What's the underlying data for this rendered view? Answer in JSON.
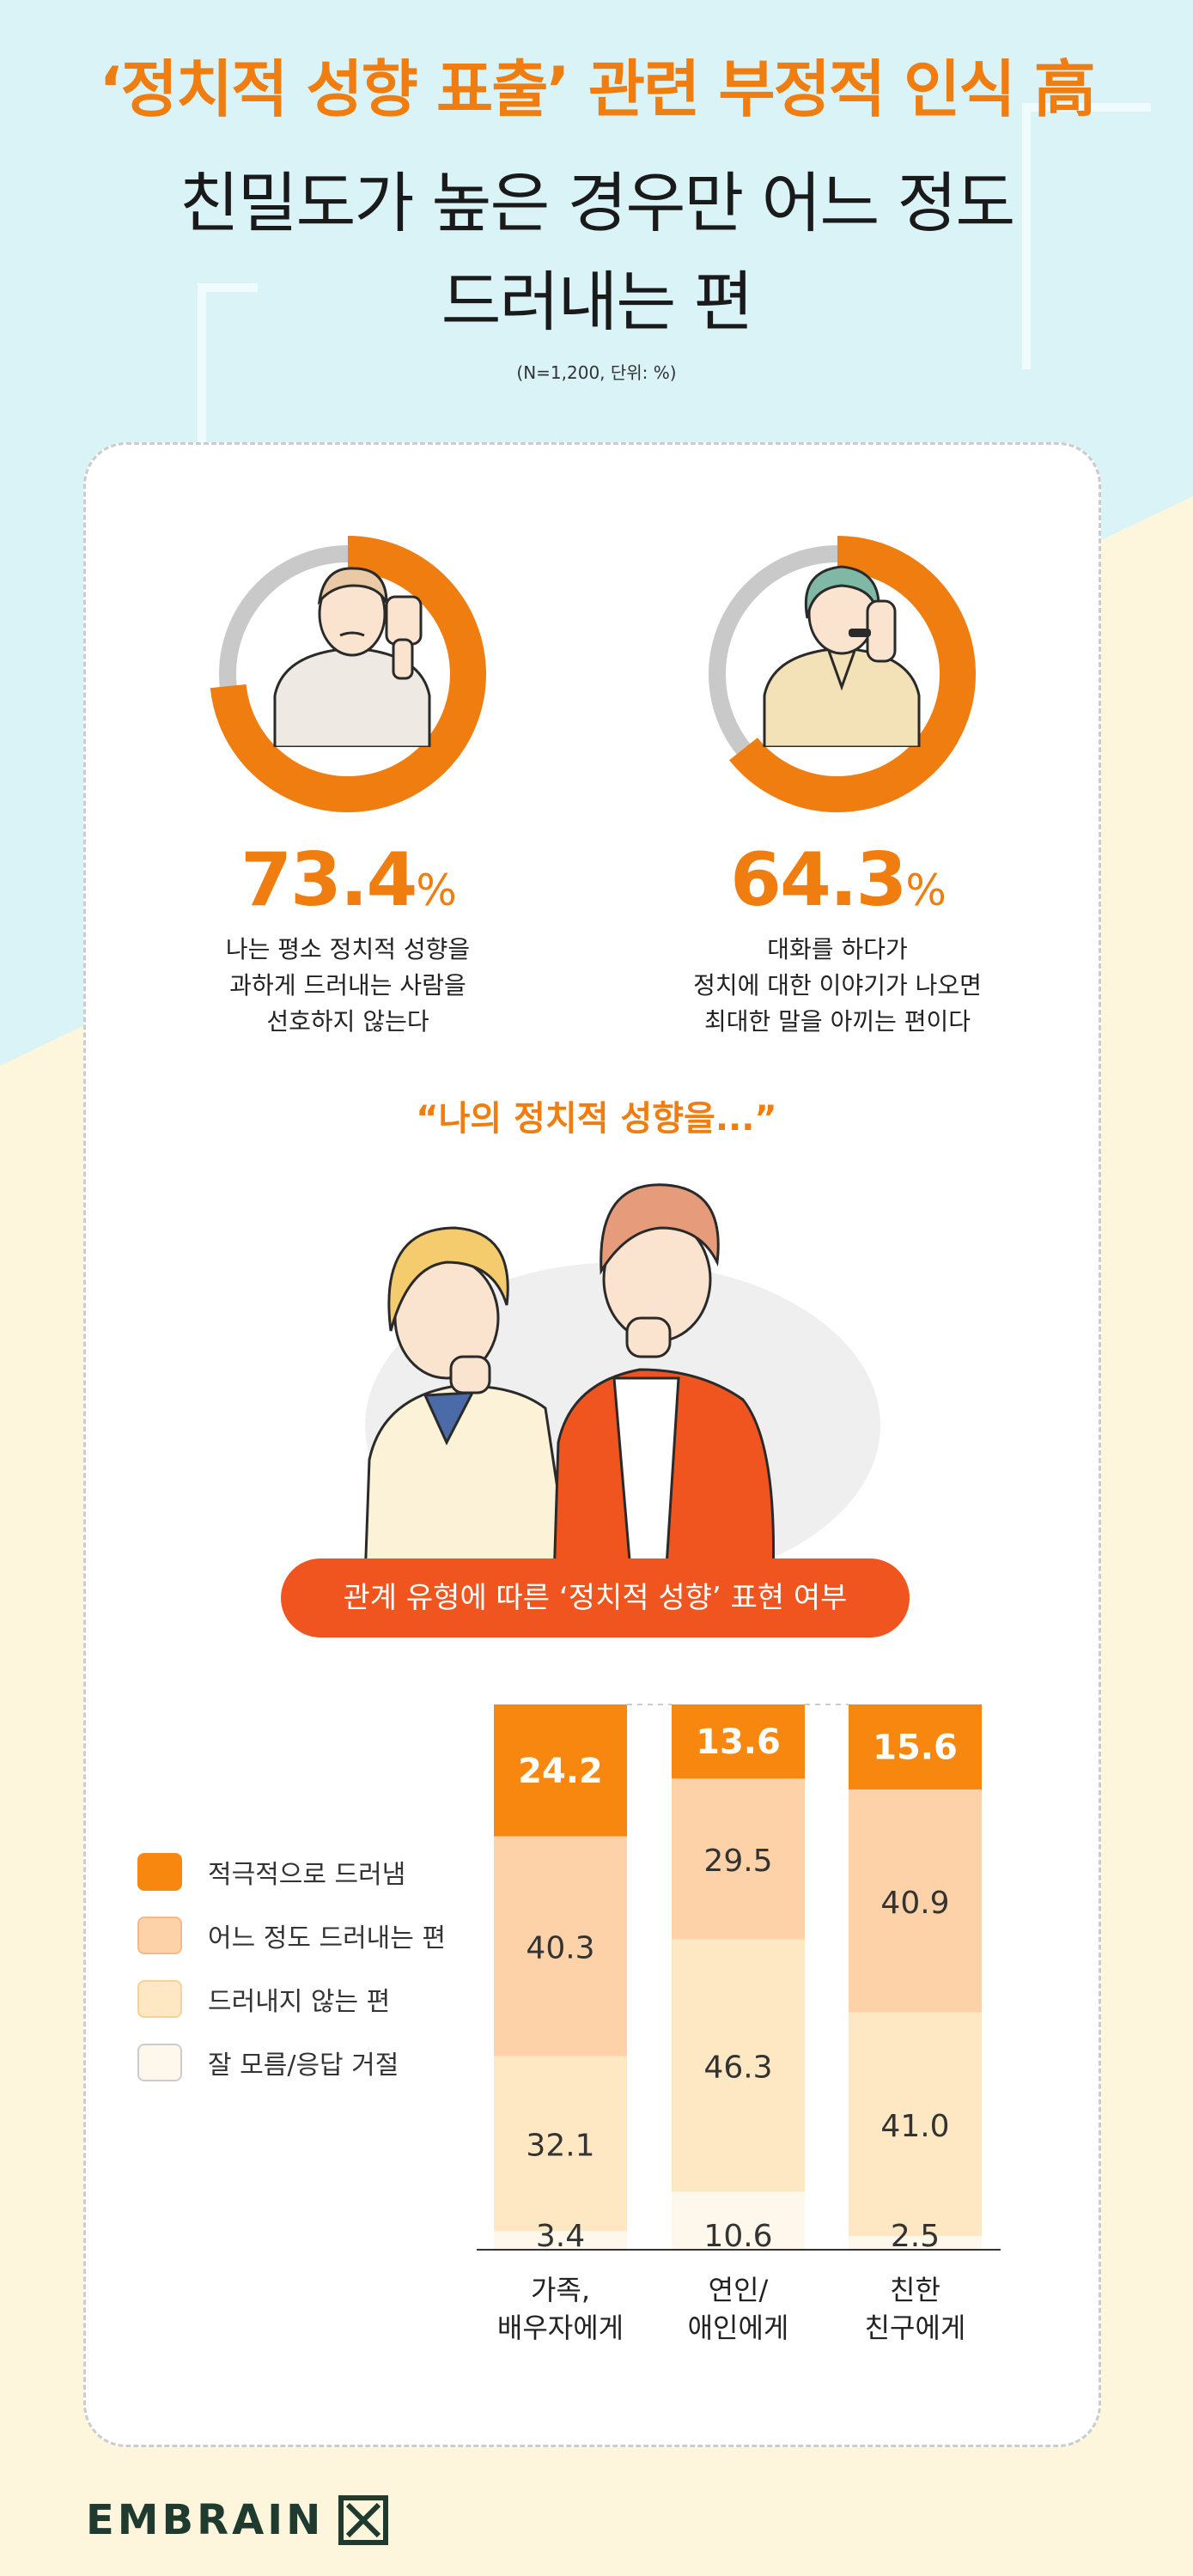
{
  "title": {
    "line1": "‘정치적 성향 표출’ 관련 부정적 인식 高",
    "line2": "친밀도가 높은 경우만 어느 정도",
    "line3": "드러내는 편"
  },
  "note": "(N=1,200, 단위: %)",
  "stats": [
    {
      "value": "73.4",
      "unit": "%",
      "pct": 73.4,
      "desc": [
        "나는 평소 정치적 성향을",
        "과하게 드러내는 사람을",
        "선호하지 않는다"
      ]
    },
    {
      "value": "64.3",
      "unit": "%",
      "pct": 64.3,
      "desc": [
        "대화를 하다가",
        "정치에 대한  이야기가 나오면",
        "최대한 말을 아끼는 편이다"
      ]
    }
  ],
  "quote": "“나의 정치적 성향을...”",
  "banner": "관계 유형에 따른 ‘정치적 성향’ 표현 여부",
  "colors": {
    "accent": "#f07d10",
    "banner": "#f0551f",
    "s1": "#f7870f",
    "s2": "#fdd2a8",
    "s3": "#fde8c3",
    "s4": "#fdf7ec"
  },
  "chart_data": {
    "type": "bar",
    "stacked": true,
    "categories": [
      [
        "가족,",
        "배우자에게"
      ],
      [
        "연인/",
        "애인에게"
      ],
      [
        "친한",
        "친구에게"
      ]
    ],
    "series": [
      {
        "name": "적극적으로 드러냄",
        "values": [
          24.2,
          13.6,
          15.6
        ],
        "labels": [
          "24.2",
          "13.6",
          "15.6"
        ]
      },
      {
        "name": "어느 정도 드러내는 편",
        "values": [
          40.3,
          29.5,
          40.9
        ],
        "labels": [
          "40.3",
          "29.5",
          "40.9"
        ]
      },
      {
        "name": "드러내지 않는 편",
        "values": [
          32.1,
          46.3,
          41.0
        ],
        "labels": [
          "32.1",
          "46.3",
          "41.0"
        ]
      },
      {
        "name": "잘 모름/응답 거절",
        "values": [
          3.4,
          10.6,
          2.5
        ],
        "labels": [
          "3.4",
          "10.6",
          "2.5"
        ]
      }
    ],
    "ylim": [
      0,
      100
    ]
  },
  "logo": "EMBRAIN"
}
